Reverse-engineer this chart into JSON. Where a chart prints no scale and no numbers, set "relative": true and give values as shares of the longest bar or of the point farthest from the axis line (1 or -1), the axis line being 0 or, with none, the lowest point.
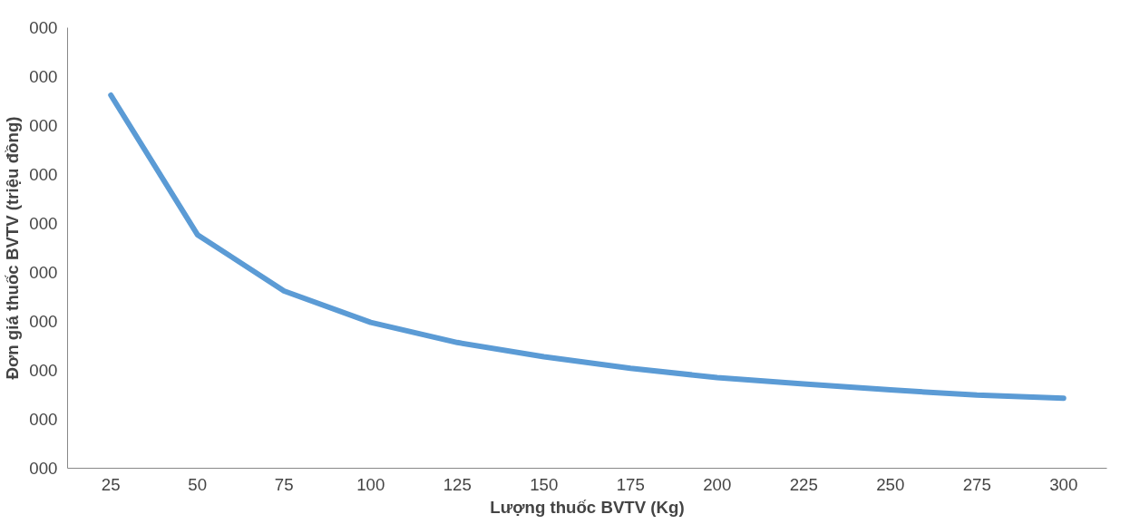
{
  "chart_data": {
    "type": "line",
    "relative": true,
    "xlabel": "Lượng thuốc BVTV (Kg)",
    "ylabel": "Đơn giá thuốc BVTV (triệu đồng)",
    "categories": [
      "25",
      "50",
      "75",
      "100",
      "125",
      "150",
      "175",
      "200",
      "225",
      "250",
      "275",
      "300"
    ],
    "series": [
      {
        "color": "#5b9bd5",
        "values": [
          1,
          0.626,
          0.475,
          0.391,
          0.337,
          0.299,
          0.268,
          0.243,
          0.226,
          0.21,
          0.196,
          0.188
        ]
      }
    ],
    "annotations": [
      "000",
      "000",
      "000",
      "000",
      "000",
      "000",
      "000",
      "000",
      "000",
      "000"
    ],
    "grid": false,
    "marker": "none",
    "line_style": "solid"
  }
}
